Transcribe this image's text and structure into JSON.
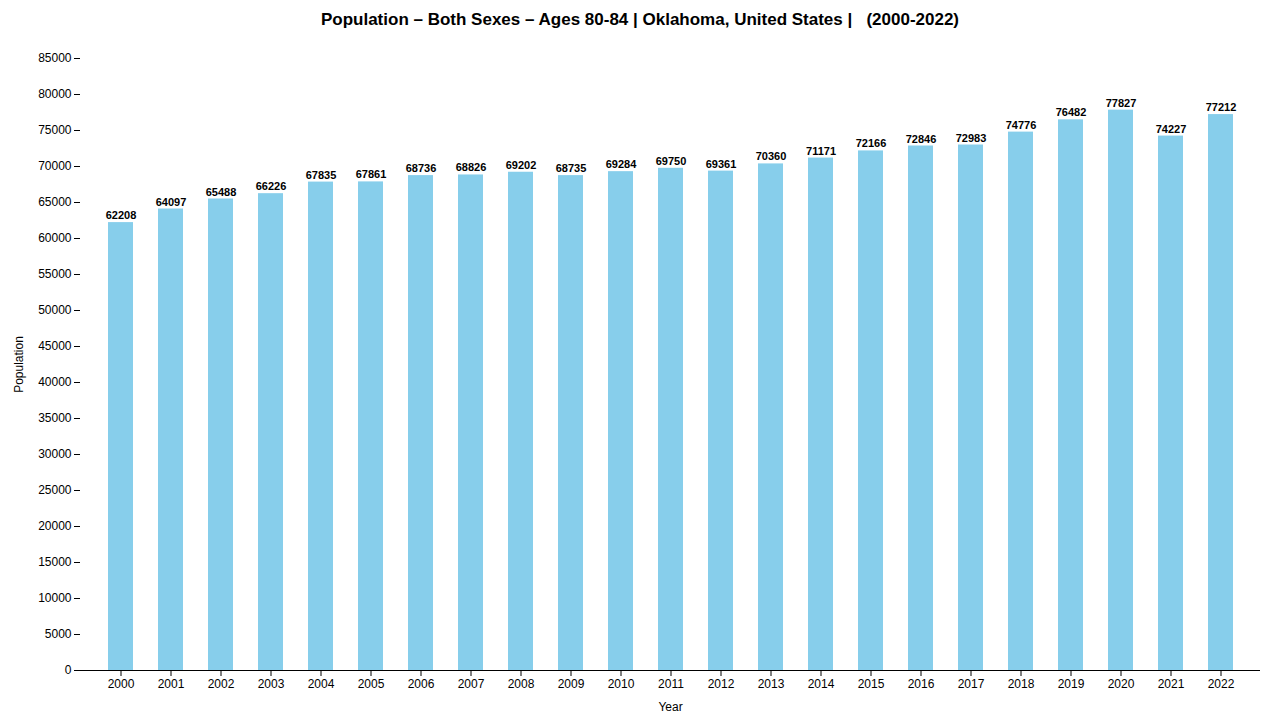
{
  "chart_data": {
    "type": "bar",
    "title": "Population – Both Sexes – Ages 80-84 | Oklahoma, United States |   (2000-2022)",
    "x_label": "Year",
    "y_label": "Population",
    "categories": [
      "2000",
      "2001",
      "2002",
      "2003",
      "2004",
      "2005",
      "2006",
      "2007",
      "2008",
      "2009",
      "2010",
      "2011",
      "2012",
      "2013",
      "2014",
      "2015",
      "2016",
      "2017",
      "2018",
      "2019",
      "2020",
      "2021",
      "2022"
    ],
    "values": [
      62208,
      64097,
      65488,
      66226,
      67835,
      67861,
      68736,
      68826,
      69202,
      68735,
      69284,
      69750,
      69361,
      70360,
      71171,
      72166,
      72846,
      72983,
      74776,
      76482,
      77827,
      74227,
      77212
    ],
    "color": "#87CEEB",
    "ylim": [
      0,
      85000
    ],
    "yticks": [
      0,
      5000,
      10000,
      15000,
      20000,
      25000,
      30000,
      35000,
      40000,
      45000,
      50000,
      55000,
      60000,
      65000,
      70000,
      75000,
      80000,
      85000
    ],
    "grid": false,
    "data_labels": true
  }
}
